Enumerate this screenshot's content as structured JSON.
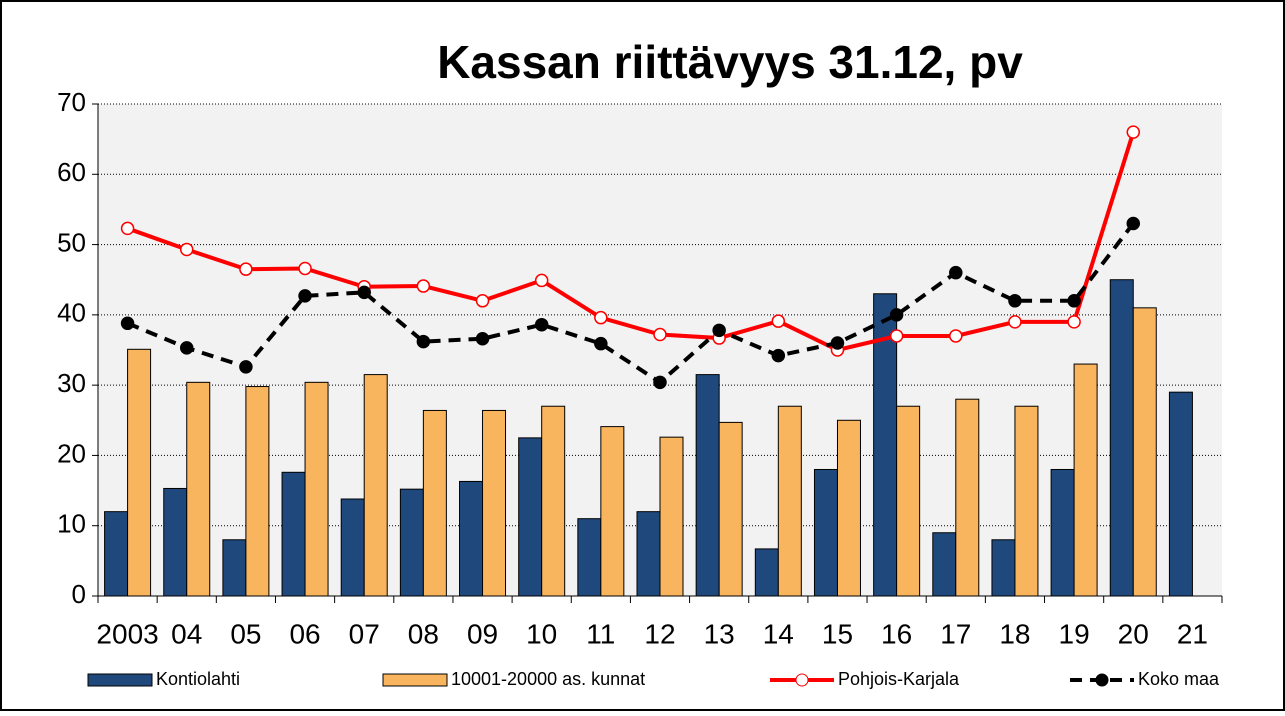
{
  "chart_data": {
    "type": "bar_line",
    "title": "Kassan riittävyys 31.12, pv",
    "categories": [
      "2003",
      "04",
      "05",
      "06",
      "07",
      "08",
      "09",
      "10",
      "11",
      "12",
      "13",
      "14",
      "15",
      "16",
      "17",
      "18",
      "19",
      "20",
      "21"
    ],
    "series": [
      {
        "name": "Kontiolahti",
        "type": "bar",
        "color": "#1f497d",
        "values": [
          12,
          15.3,
          8,
          17.6,
          13.8,
          15.2,
          16.3,
          22.5,
          11,
          12,
          31.5,
          6.7,
          18,
          43,
          9,
          8,
          18,
          45,
          29
        ]
      },
      {
        "name": "10001-20000 as. kunnat",
        "type": "bar",
        "color": "#f9b45e",
        "values": [
          35.1,
          30.4,
          29.8,
          30.4,
          31.5,
          26.4,
          26.4,
          27,
          24.1,
          22.6,
          24.7,
          27,
          25,
          27,
          28,
          27,
          33,
          41,
          null
        ]
      },
      {
        "name": "Pohjois-Karjala",
        "type": "line",
        "color": "#ff0000",
        "values": [
          52.3,
          49.3,
          46.5,
          46.6,
          44,
          44.1,
          42,
          44.9,
          39.6,
          37.2,
          36.7,
          39.1,
          35,
          37,
          37,
          39,
          39,
          66,
          null
        ]
      },
      {
        "name": "Koko maa",
        "type": "line",
        "color": "#000000",
        "dashed": true,
        "values": [
          38.8,
          35.3,
          32.6,
          42.7,
          43.2,
          36.2,
          36.6,
          38.6,
          35.9,
          30.4,
          37.8,
          34.2,
          36,
          40,
          46,
          42,
          42,
          53,
          null
        ]
      }
    ],
    "ylim": [
      0,
      70
    ],
    "yticks": [
      0,
      10,
      20,
      30,
      40,
      50,
      60,
      70
    ],
    "grid": true,
    "legend": "bottom"
  }
}
